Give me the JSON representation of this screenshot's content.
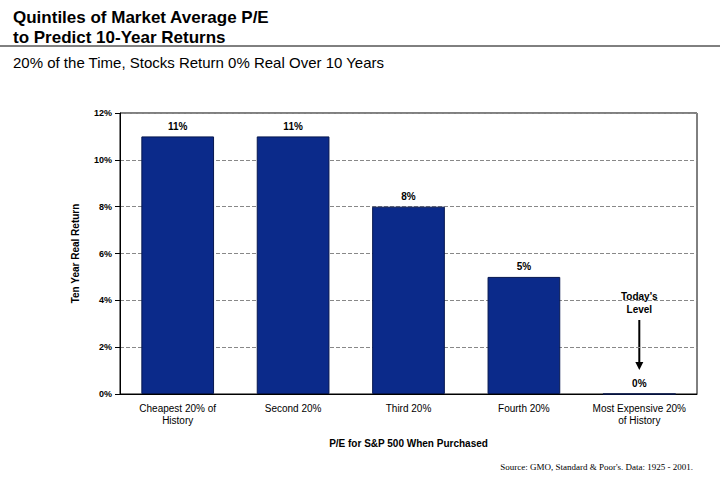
{
  "chart_data": {
    "type": "bar",
    "title": "Quintiles of Market Average P/E\nto Predict 10-Year Returns",
    "subtitle": "20% of the Time, Stocks Return 0% Real Over 10 Years",
    "x_label": "P/E for S&P 500 When Purchased",
    "y_label": "Ten Year Real Return",
    "source": "Source: GMO, Standard & Poor's. Data: 1925 - 2001.",
    "annotation": {
      "text": "Today's\nLevel",
      "category": "Most Expensive 20%\nof History"
    },
    "categories": [
      "Cheapest 20% of\nHistory",
      "Second 20%",
      "Third 20%",
      "Fourth 20%",
      "Most Expensive 20%\nof History"
    ],
    "values": [
      11,
      11,
      8,
      5,
      0
    ],
    "value_labels": [
      "11%",
      "11%",
      "8%",
      "5%",
      "0%"
    ],
    "color": "#0b2a8a",
    "ylim": [
      0,
      12
    ],
    "yticks": [
      {
        "value": 0,
        "label": "0%"
      },
      {
        "value": 2,
        "label": "2%"
      },
      {
        "value": 4,
        "label": "4%"
      },
      {
        "value": 6,
        "label": "6%"
      },
      {
        "value": 8,
        "label": "8%"
      },
      {
        "value": 10,
        "label": "10%"
      },
      {
        "value": 12,
        "label": "12%"
      }
    ],
    "grid": true,
    "data_labels": true
  }
}
